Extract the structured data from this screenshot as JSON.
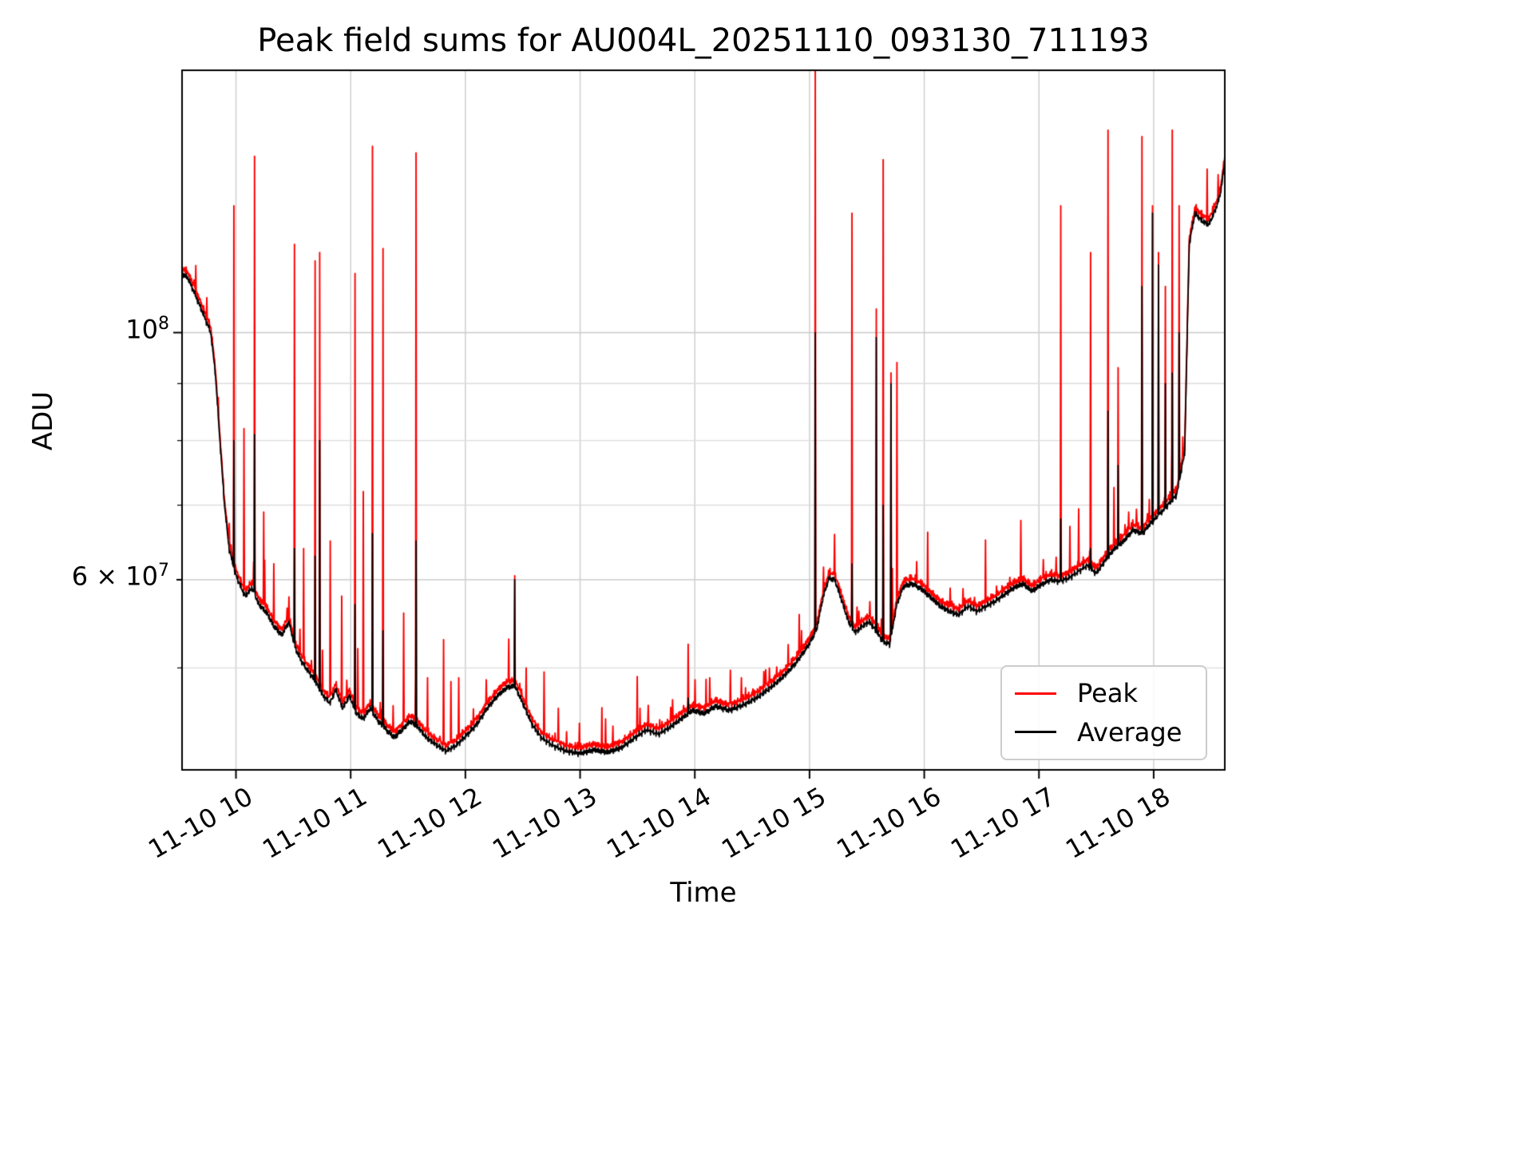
{
  "chart_data": {
    "type": "line",
    "title": "Peak field sums for AU004L_20251110_093130_711193",
    "xlabel": "Time",
    "ylabel": "ADU",
    "yscale": "log",
    "grid": true,
    "legend_position": "lower right",
    "xlim": [
      9.53,
      18.62
    ],
    "ylim": [
      40500000.0,
      172000000.0
    ],
    "x_ticks": [
      {
        "t": 10,
        "label": "11-10 10"
      },
      {
        "t": 11,
        "label": "11-10 11"
      },
      {
        "t": 12,
        "label": "11-10 12"
      },
      {
        "t": 13,
        "label": "11-10 13"
      },
      {
        "t": 14,
        "label": "11-10 14"
      },
      {
        "t": 15,
        "label": "11-10 15"
      },
      {
        "t": 16,
        "label": "11-10 16"
      },
      {
        "t": 17,
        "label": "11-10 17"
      },
      {
        "t": 18,
        "label": "11-10 18"
      }
    ],
    "y_ticks": [
      {
        "v": 100000000.0,
        "coeff": "",
        "base": "10",
        "exp": "8",
        "major": true
      },
      {
        "v": 60000000.0,
        "coeff": "6 × ",
        "base": "10",
        "exp": "7",
        "major": false
      }
    ],
    "y_minor_ticks": [
      50000000.0,
      60000000.0,
      70000000.0,
      80000000.0,
      90000000.0
    ],
    "grid_major_color": "#cccccc",
    "grid_minor_color": "#dddddd",
    "series": [
      {
        "name": "Peak",
        "color": "#ff0000"
      },
      {
        "name": "Average",
        "color": "#000000"
      }
    ],
    "time_unit": "hours on 11-10",
    "value_unit": "ADU",
    "average_keypoints": [
      [
        9.53,
        113000000.0
      ],
      [
        9.58,
        112000000.0
      ],
      [
        9.63,
        109000000.0
      ],
      [
        9.68,
        106000000.0
      ],
      [
        9.73,
        103000000.0
      ],
      [
        9.78,
        100000000.0
      ],
      [
        9.82,
        92000000.0
      ],
      [
        9.86,
        80000000.0
      ],
      [
        9.9,
        70000000.0
      ],
      [
        9.94,
        64000000.0
      ],
      [
        9.99,
        61000000.0
      ],
      [
        10.03,
        59500000.0
      ],
      [
        10.08,
        58000000.0
      ],
      [
        10.14,
        59000000.0
      ],
      [
        10.2,
        57000000.0
      ],
      [
        10.27,
        56000000.0
      ],
      [
        10.33,
        54500000.0
      ],
      [
        10.4,
        53500000.0
      ],
      [
        10.46,
        55000000.0
      ],
      [
        10.52,
        52000000.0
      ],
      [
        10.58,
        50500000.0
      ],
      [
        10.64,
        49500000.0
      ],
      [
        10.7,
        48500000.0
      ],
      [
        10.76,
        47200000.0
      ],
      [
        10.82,
        46500000.0
      ],
      [
        10.87,
        47800000.0
      ],
      [
        10.93,
        46000000.0
      ],
      [
        10.99,
        47200000.0
      ],
      [
        11.05,
        45500000.0
      ],
      [
        11.11,
        45000000.0
      ],
      [
        11.17,
        46000000.0
      ],
      [
        11.24,
        44800000.0
      ],
      [
        11.31,
        44000000.0
      ],
      [
        11.38,
        43300000.0
      ],
      [
        11.45,
        44000000.0
      ],
      [
        11.52,
        44800000.0
      ],
      [
        11.59,
        44200000.0
      ],
      [
        11.66,
        43300000.0
      ],
      [
        11.74,
        42700000.0
      ],
      [
        11.83,
        42100000.0
      ],
      [
        11.92,
        42600000.0
      ],
      [
        12.01,
        43500000.0
      ],
      [
        12.1,
        44500000.0
      ],
      [
        12.19,
        46000000.0
      ],
      [
        12.28,
        47200000.0
      ],
      [
        12.36,
        48000000.0
      ],
      [
        12.43,
        48200000.0
      ],
      [
        12.5,
        46500000.0
      ],
      [
        12.58,
        44500000.0
      ],
      [
        12.66,
        43300000.0
      ],
      [
        12.76,
        42600000.0
      ],
      [
        12.88,
        42100000.0
      ],
      [
        13.0,
        41900000.0
      ],
      [
        13.12,
        42200000.0
      ],
      [
        13.24,
        42000000.0
      ],
      [
        13.36,
        42400000.0
      ],
      [
        13.48,
        43300000.0
      ],
      [
        13.58,
        44000000.0
      ],
      [
        13.68,
        43600000.0
      ],
      [
        13.78,
        44200000.0
      ],
      [
        13.88,
        45000000.0
      ],
      [
        13.98,
        45800000.0
      ],
      [
        14.08,
        45500000.0
      ],
      [
        14.18,
        46200000.0
      ],
      [
        14.3,
        45800000.0
      ],
      [
        14.42,
        46300000.0
      ],
      [
        14.54,
        47000000.0
      ],
      [
        14.66,
        48000000.0
      ],
      [
        14.78,
        49200000.0
      ],
      [
        14.88,
        50500000.0
      ],
      [
        14.98,
        52200000.0
      ],
      [
        15.06,
        54000000.0
      ],
      [
        15.12,
        58000000.0
      ],
      [
        15.17,
        60200000.0
      ],
      [
        15.22,
        60000000.0
      ],
      [
        15.28,
        57500000.0
      ],
      [
        15.34,
        55000000.0
      ],
      [
        15.4,
        53800000.0
      ],
      [
        15.46,
        54500000.0
      ],
      [
        15.52,
        55000000.0
      ],
      [
        15.58,
        54000000.0
      ],
      [
        15.64,
        52800000.0
      ],
      [
        15.7,
        52500000.0
      ],
      [
        15.76,
        57000000.0
      ],
      [
        15.82,
        59200000.0
      ],
      [
        15.9,
        59500000.0
      ],
      [
        15.98,
        58800000.0
      ],
      [
        16.06,
        57800000.0
      ],
      [
        16.14,
        56800000.0
      ],
      [
        16.22,
        56200000.0
      ],
      [
        16.3,
        55800000.0
      ],
      [
        16.38,
        56800000.0
      ],
      [
        16.46,
        56200000.0
      ],
      [
        16.54,
        56800000.0
      ],
      [
        16.62,
        57400000.0
      ],
      [
        16.7,
        58200000.0
      ],
      [
        16.78,
        59000000.0
      ],
      [
        16.86,
        59500000.0
      ],
      [
        16.94,
        58600000.0
      ],
      [
        17.02,
        59400000.0
      ],
      [
        17.1,
        60000000.0
      ],
      [
        17.18,
        59800000.0
      ],
      [
        17.26,
        60200000.0
      ],
      [
        17.34,
        61000000.0
      ],
      [
        17.42,
        61800000.0
      ],
      [
        17.5,
        60800000.0
      ],
      [
        17.58,
        62500000.0
      ],
      [
        17.66,
        64000000.0
      ],
      [
        17.74,
        65000000.0
      ],
      [
        17.82,
        66500000.0
      ],
      [
        17.9,
        66000000.0
      ],
      [
        17.96,
        67200000.0
      ],
      [
        18.04,
        68500000.0
      ],
      [
        18.12,
        70000000.0
      ],
      [
        18.2,
        71500000.0
      ],
      [
        18.27,
        78000000.0
      ],
      [
        18.31,
        120000000.0
      ],
      [
        18.36,
        128000000.0
      ],
      [
        18.42,
        126000000.0
      ],
      [
        18.48,
        125000000.0
      ],
      [
        18.54,
        129000000.0
      ],
      [
        18.58,
        133000000.0
      ],
      [
        18.62,
        142000000.0
      ]
    ],
    "peak_spikes": [
      [
        9.98,
        130000000.0,
        80000000.0
      ],
      [
        10.07,
        82000000.0,
        null
      ],
      [
        10.16,
        144000000.0,
        81000000.0
      ],
      [
        10.24,
        69000000.0,
        null
      ],
      [
        10.33,
        62000000.0,
        null
      ],
      [
        10.51,
        120000000.0,
        64000000.0
      ],
      [
        10.59,
        64000000.0,
        null
      ],
      [
        10.69,
        116000000.0,
        63000000.0
      ],
      [
        10.73,
        118000000.0,
        80000000.0
      ],
      [
        10.82,
        65000000.0,
        null
      ],
      [
        10.92,
        58000000.0,
        null
      ],
      [
        11.04,
        113000000.0,
        57000000.0
      ],
      [
        11.11,
        72000000.0,
        null
      ],
      [
        11.19,
        147000000.0,
        66000000.0
      ],
      [
        11.28,
        119000000.0,
        54000000.0
      ],
      [
        11.46,
        56000000.0,
        null
      ],
      [
        11.57,
        145000000.0,
        65000000.0
      ],
      [
        11.67,
        49000000.0,
        null
      ],
      [
        11.81,
        53000000.0,
        null
      ],
      [
        11.94,
        49000000.0,
        null
      ],
      [
        12.43,
        60500000.0,
        60000000.0
      ],
      [
        12.53,
        50000000.0,
        null
      ],
      [
        12.81,
        46000000.0,
        null
      ],
      [
        13.22,
        45000000.0,
        null
      ],
      [
        13.52,
        46000000.0,
        null
      ],
      [
        13.94,
        52500000.0,
        47000000.0
      ],
      [
        14.13,
        49000000.0,
        null
      ],
      [
        14.44,
        48000000.0,
        null
      ],
      [
        14.65,
        50000000.0,
        null
      ],
      [
        14.93,
        54000000.0,
        null
      ],
      [
        15.05,
        175000000.0,
        100000000.0
      ],
      [
        15.37,
        128000000.0,
        62000000.0
      ],
      [
        15.58,
        105000000.0,
        99000000.0
      ],
      [
        15.64,
        143000000.0,
        70000000.0
      ],
      [
        15.71,
        92000000.0,
        90000000.0
      ],
      [
        15.76,
        94000000.0,
        56000000.0
      ],
      [
        17.19,
        130000000.0,
        68000000.0
      ],
      [
        17.27,
        67000000.0,
        null
      ],
      [
        17.45,
        118000000.0,
        64000000.0
      ],
      [
        17.6,
        152000000.0,
        85000000.0
      ],
      [
        17.69,
        93000000.0,
        76000000.0
      ],
      [
        17.78,
        69000000.0,
        null
      ],
      [
        17.9,
        150000000.0,
        110000000.0
      ],
      [
        17.99,
        130000000.0,
        128000000.0
      ],
      [
        18.04,
        118000000.0,
        115000000.0
      ],
      [
        18.1,
        110000000.0,
        90000000.0
      ],
      [
        18.16,
        152000000.0,
        92000000.0
      ],
      [
        18.22,
        130000000.0,
        100000000.0
      ]
    ]
  }
}
